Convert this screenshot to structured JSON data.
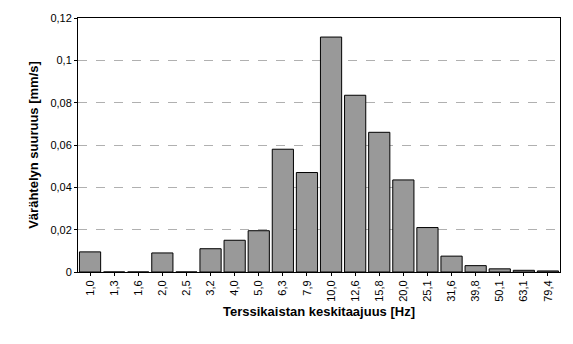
{
  "chart_data": {
    "type": "bar",
    "x_label": "Terssikaistan keskitaajuus [Hz]",
    "y_label": "Värähtelyn suuruus [mm/s]",
    "categories": [
      "1,0",
      "1,3",
      "1,6",
      "2,0",
      "2,5",
      "3,2",
      "4,0",
      "5,0",
      "6,3",
      "7,9",
      "10,0",
      "12,6",
      "15,8",
      "20,0",
      "25,1",
      "31,6",
      "39,8",
      "50,1",
      "63,1",
      "79,4"
    ],
    "values": [
      0.0095,
      0,
      0,
      0.009,
      0,
      0.011,
      0.015,
      0.0195,
      0.058,
      0.047,
      0.111,
      0.0835,
      0.066,
      0.0435,
      0.021,
      0.0075,
      0.003,
      0.0015,
      0.0008,
      0.0005
    ],
    "color": "#999999",
    "ylim": [
      0,
      0.12
    ],
    "yticks": [
      0,
      {
        "value": 0.02,
        "label": "0,02"
      },
      {
        "value": 0.04,
        "label": "0,04"
      },
      {
        "value": 0.06,
        "label": "0,06"
      },
      {
        "value": 0.08,
        "label": "0,08"
      },
      {
        "value": 0.1,
        "label": "0,1"
      },
      {
        "value": 0.12,
        "label": "0,12"
      }
    ],
    "grid": true
  }
}
